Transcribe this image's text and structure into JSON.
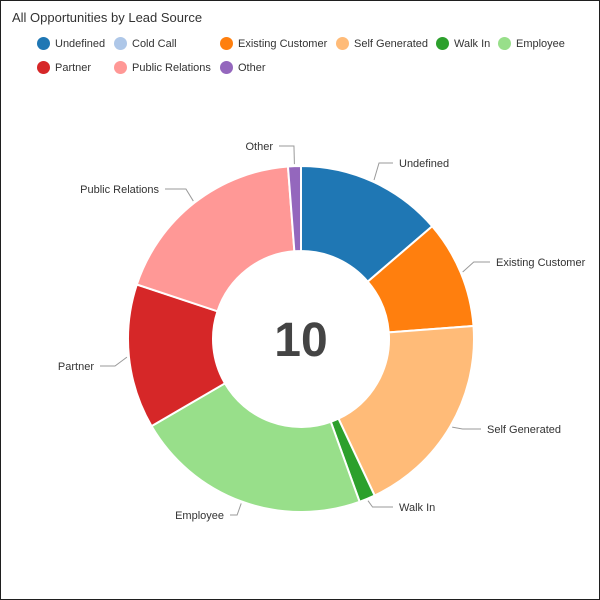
{
  "chart_data": {
    "type": "donut",
    "title": "All Opportunities by Lead Source",
    "total_label": "10",
    "legend_position": "top-left",
    "slices": [
      {
        "name": "Undefined",
        "share": 0.137,
        "color": "#1f77b4"
      },
      {
        "name": "Cold Call",
        "share": 0.0,
        "color": "#aec7e8"
      },
      {
        "name": "Existing Customer",
        "share": 0.101,
        "color": "#ff7f0e"
      },
      {
        "name": "Self Generated",
        "share": 0.192,
        "color": "#ffbb78"
      },
      {
        "name": "Walk In",
        "share": 0.015,
        "color": "#2ca02c"
      },
      {
        "name": "Employee",
        "share": 0.221,
        "color": "#98df8a"
      },
      {
        "name": "Partner",
        "share": 0.135,
        "color": "#d62728"
      },
      {
        "name": "Public Relations",
        "share": 0.187,
        "color": "#ff9896"
      },
      {
        "name": "Other",
        "share": 0.012,
        "color": "#9467bd"
      }
    ]
  }
}
